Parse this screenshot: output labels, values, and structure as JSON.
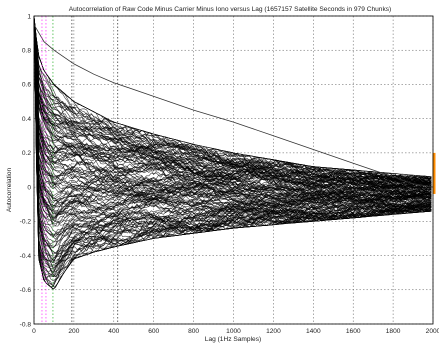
{
  "chart_data": {
    "type": "line",
    "title": "Autocorrelation of Raw Code Minus Carrier Minus Iono versus Lag (1657157 Satellite Seconds in 979 Chunks)",
    "xlabel": "Lag (1Hz Samples)",
    "ylabel": "Autocorrelation",
    "xlim": [
      0,
      2000
    ],
    "ylim": [
      -0.8,
      1.0
    ],
    "xticks": [
      0,
      200,
      400,
      600,
      800,
      1000,
      1200,
      1400,
      1600,
      1800,
      2000
    ],
    "yticks": [
      -0.8,
      -0.6,
      -0.4,
      -0.2,
      0,
      0.2,
      0.4,
      0.6,
      0.8,
      1
    ],
    "ytick_labels": [
      "-0.8",
      "-0.6",
      "-0.4",
      "-0.2",
      "0",
      "0.2",
      "0.4",
      "0.6",
      "0.8",
      "1"
    ],
    "grid": true,
    "line_color": "#000000",
    "highlight_color": "#ff8c00",
    "envelope": {
      "description": "979 overlapping autocorrelation curves",
      "lag": [
        0,
        20,
        50,
        100,
        150,
        200,
        300,
        400,
        600,
        800,
        1000,
        1200,
        1400,
        1600,
        1800,
        2000
      ],
      "upper": [
        1.0,
        0.78,
        0.68,
        0.6,
        0.55,
        0.5,
        0.44,
        0.38,
        0.31,
        0.25,
        0.2,
        0.16,
        0.12,
        0.1,
        0.08,
        0.06
      ],
      "lower": [
        1.0,
        -0.4,
        -0.55,
        -0.6,
        -0.5,
        -0.42,
        -0.38,
        -0.35,
        -0.3,
        -0.27,
        -0.24,
        -0.22,
        -0.2,
        -0.18,
        -0.16,
        -0.14
      ]
    },
    "outlier_series": {
      "lag": [
        0,
        50,
        100,
        200,
        300,
        400,
        600,
        800,
        1000,
        1200,
        1400,
        1600,
        1800,
        1900,
        2000
      ],
      "values": [
        0.95,
        0.85,
        0.8,
        0.72,
        0.66,
        0.61,
        0.53,
        0.45,
        0.38,
        0.3,
        0.22,
        0.14,
        0.06,
        0.02,
        0.0
      ]
    },
    "vertical_markers": [
      {
        "lag": 40,
        "color": "#ff00ff"
      },
      {
        "lag": 60,
        "color": "#ff00ff"
      },
      {
        "lag": 95,
        "color": "#00a000"
      },
      {
        "lag": 190,
        "color": "#000000"
      },
      {
        "lag": 420,
        "color": "#000000"
      }
    ]
  }
}
